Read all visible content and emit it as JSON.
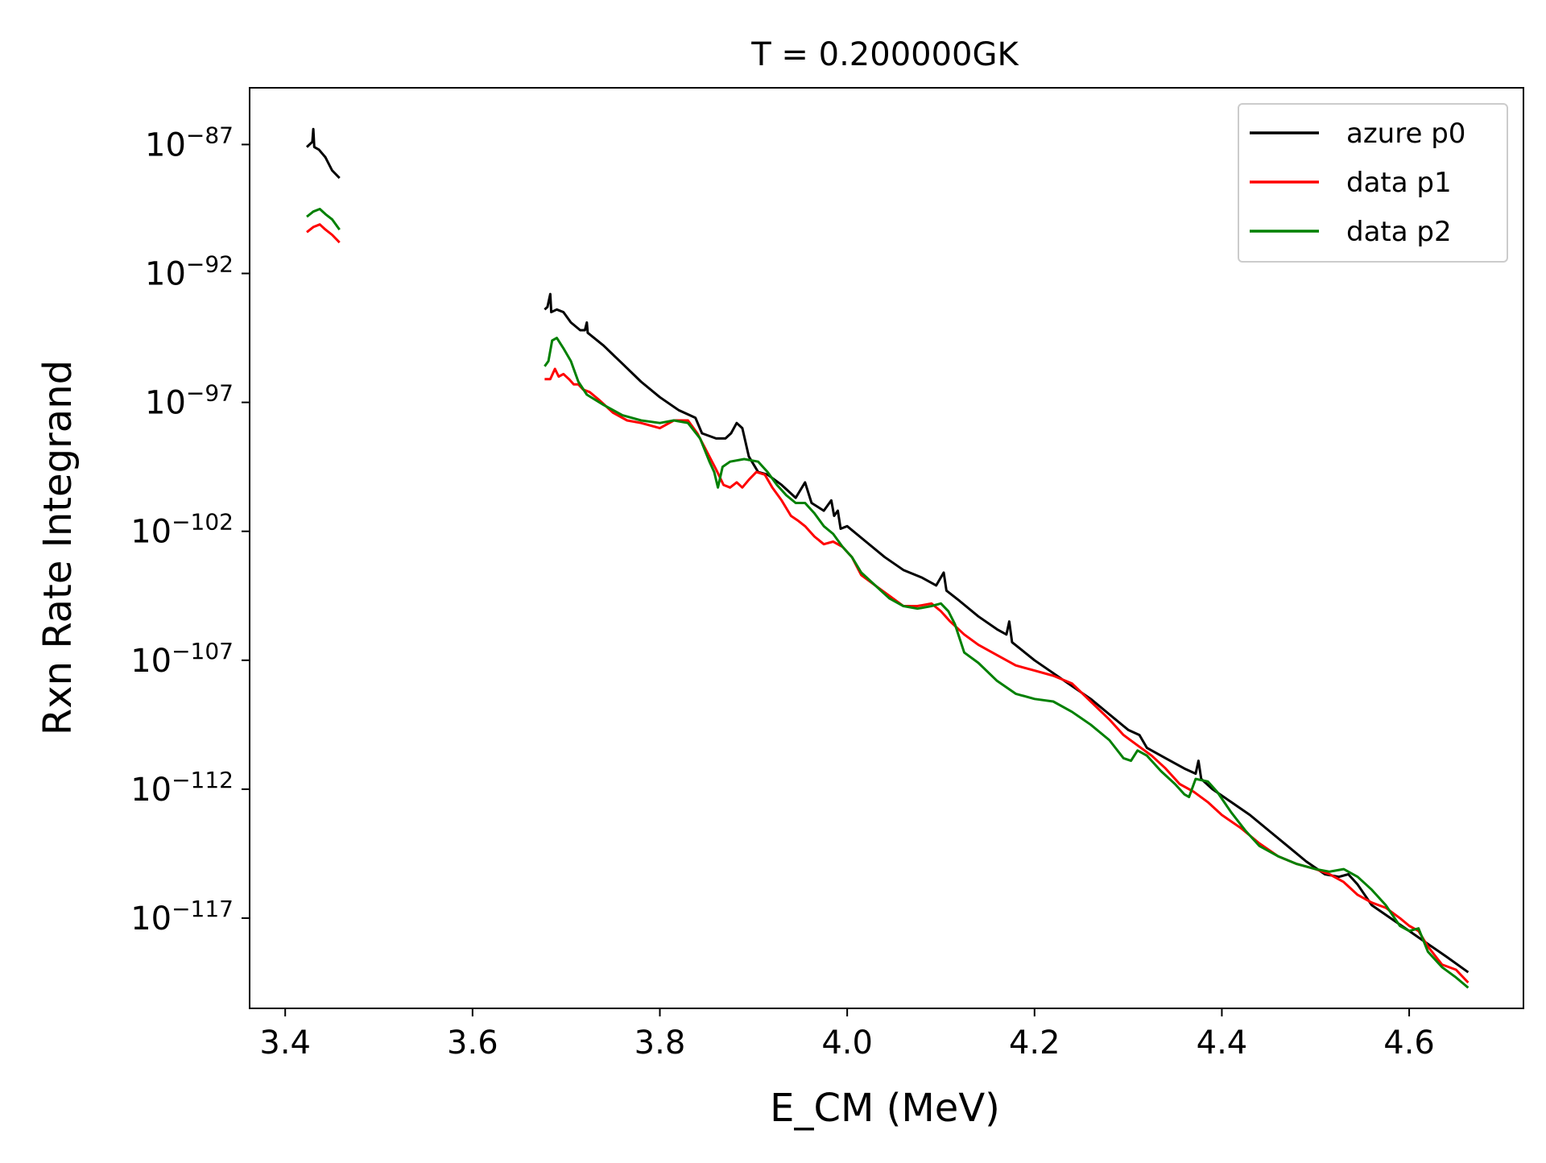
{
  "chart_data": {
    "type": "line",
    "title": "T = 0.200000GK",
    "xlabel": "E_CM (MeV)",
    "ylabel": "Rxn Rate Integrand",
    "y_scale": "log",
    "xlim": [
      3.362,
      4.722
    ],
    "ylim_exponent": [
      -120.5,
      -84.8
    ],
    "x_ticks": [
      3.4,
      3.6,
      3.8,
      4.0,
      4.2,
      4.4,
      4.6
    ],
    "x_tick_labels": [
      "3.4",
      "3.6",
      "3.8",
      "4.0",
      "4.2",
      "4.4",
      "4.6"
    ],
    "y_ticks_exponent": [
      -87,
      -92,
      -97,
      -102,
      -107,
      -112,
      -117
    ],
    "y_tick_base": "10",
    "y_tick_exponent_labels": [
      "−87",
      "−92",
      "−97",
      "−102",
      "−107",
      "−112",
      "−117"
    ],
    "grid": false,
    "legend_position": "top-right",
    "series": [
      {
        "name": "azure p0",
        "color": "#000000",
        "segments": [
          [
            [
              3.423,
              -87.1
            ],
            [
              3.429,
              -86.9
            ],
            [
              3.43,
              -86.4
            ],
            [
              3.431,
              -87.1
            ],
            [
              3.436,
              -87.2
            ],
            [
              3.443,
              -87.5
            ],
            [
              3.45,
              -88.0
            ],
            [
              3.458,
              -88.3
            ]
          ],
          [
            [
              3.677,
              -93.4
            ],
            [
              3.68,
              -93.3
            ],
            [
              3.683,
              -92.8
            ],
            [
              3.684,
              -93.5
            ],
            [
              3.69,
              -93.4
            ],
            [
              3.697,
              -93.5
            ],
            [
              3.705,
              -93.9
            ],
            [
              3.715,
              -94.2
            ],
            [
              3.72,
              -94.2
            ],
            [
              3.722,
              -93.9
            ],
            [
              3.723,
              -94.3
            ],
            [
              3.74,
              -94.8
            ],
            [
              3.76,
              -95.5
            ],
            [
              3.78,
              -96.2
            ],
            [
              3.8,
              -96.8
            ],
            [
              3.82,
              -97.3
            ],
            [
              3.838,
              -97.6
            ],
            [
              3.845,
              -98.2
            ],
            [
              3.86,
              -98.4
            ],
            [
              3.87,
              -98.4
            ],
            [
              3.876,
              -98.2
            ],
            [
              3.882,
              -97.8
            ],
            [
              3.888,
              -98.0
            ],
            [
              3.895,
              -99.1
            ],
            [
              3.905,
              -99.7
            ],
            [
              3.915,
              -99.8
            ],
            [
              3.93,
              -100.2
            ],
            [
              3.945,
              -100.7
            ],
            [
              3.955,
              -100.1
            ],
            [
              3.962,
              -100.9
            ],
            [
              3.975,
              -101.2
            ],
            [
              3.983,
              -100.8
            ],
            [
              3.986,
              -101.4
            ],
            [
              3.99,
              -101.2
            ],
            [
              3.993,
              -101.9
            ],
            [
              4.0,
              -101.8
            ],
            [
              4.02,
              -102.4
            ],
            [
              4.04,
              -103.0
            ],
            [
              4.06,
              -103.5
            ],
            [
              4.08,
              -103.8
            ],
            [
              4.095,
              -104.1
            ],
            [
              4.103,
              -103.6
            ],
            [
              4.106,
              -104.3
            ],
            [
              4.12,
              -104.7
            ],
            [
              4.14,
              -105.3
            ],
            [
              4.16,
              -105.8
            ],
            [
              4.17,
              -106.0
            ],
            [
              4.173,
              -105.5
            ],
            [
              4.176,
              -106.3
            ],
            [
              4.2,
              -107.0
            ],
            [
              4.22,
              -107.5
            ],
            [
              4.24,
              -108.0
            ],
            [
              4.26,
              -108.5
            ],
            [
              4.28,
              -109.1
            ],
            [
              4.3,
              -109.7
            ],
            [
              4.312,
              -109.9
            ],
            [
              4.32,
              -110.4
            ],
            [
              4.34,
              -110.8
            ],
            [
              4.36,
              -111.2
            ],
            [
              4.372,
              -111.4
            ],
            [
              4.375,
              -110.9
            ],
            [
              4.378,
              -111.6
            ],
            [
              4.39,
              -112.0
            ],
            [
              4.41,
              -112.5
            ],
            [
              4.43,
              -113.0
            ],
            [
              4.45,
              -113.6
            ],
            [
              4.47,
              -114.2
            ],
            [
              4.49,
              -114.8
            ],
            [
              4.51,
              -115.3
            ],
            [
              4.525,
              -115.4
            ],
            [
              4.535,
              -115.3
            ],
            [
              4.545,
              -115.7
            ],
            [
              4.56,
              -116.5
            ],
            [
              4.58,
              -117.0
            ],
            [
              4.6,
              -117.5
            ],
            [
              4.62,
              -118.0
            ],
            [
              4.64,
              -118.5
            ],
            [
              4.663,
              -119.1
            ]
          ]
        ]
      },
      {
        "name": "data p1",
        "color": "#ff0000",
        "segments": [
          [
            [
              3.423,
              -90.4
            ],
            [
              3.43,
              -90.2
            ],
            [
              3.437,
              -90.1
            ],
            [
              3.443,
              -90.3
            ],
            [
              3.45,
              -90.5
            ],
            [
              3.458,
              -90.8
            ]
          ],
          [
            [
              3.677,
              -96.1
            ],
            [
              3.683,
              -96.1
            ],
            [
              3.688,
              -95.7
            ],
            [
              3.692,
              -96.0
            ],
            [
              3.697,
              -95.9
            ],
            [
              3.703,
              -96.1
            ],
            [
              3.708,
              -96.3
            ],
            [
              3.713,
              -96.3
            ],
            [
              3.718,
              -96.5
            ],
            [
              3.725,
              -96.6
            ],
            [
              3.735,
              -96.9
            ],
            [
              3.75,
              -97.4
            ],
            [
              3.765,
              -97.7
            ],
            [
              3.78,
              -97.8
            ],
            [
              3.8,
              -98.0
            ],
            [
              3.815,
              -97.7
            ],
            [
              3.83,
              -97.7
            ],
            [
              3.84,
              -98.2
            ],
            [
              3.85,
              -98.9
            ],
            [
              3.86,
              -99.6
            ],
            [
              3.868,
              -100.2
            ],
            [
              3.875,
              -100.3
            ],
            [
              3.882,
              -100.1
            ],
            [
              3.888,
              -100.3
            ],
            [
              3.895,
              -100.0
            ],
            [
              3.903,
              -99.7
            ],
            [
              3.912,
              -99.8
            ],
            [
              3.92,
              -100.3
            ],
            [
              3.93,
              -100.8
            ],
            [
              3.94,
              -101.4
            ],
            [
              3.948,
              -101.6
            ],
            [
              3.955,
              -101.8
            ],
            [
              3.965,
              -102.2
            ],
            [
              3.975,
              -102.5
            ],
            [
              3.985,
              -102.4
            ],
            [
              3.995,
              -102.6
            ],
            [
              4.005,
              -103.0
            ],
            [
              4.015,
              -103.7
            ],
            [
              4.03,
              -104.1
            ],
            [
              4.045,
              -104.5
            ],
            [
              4.06,
              -104.9
            ],
            [
              4.075,
              -104.9
            ],
            [
              4.09,
              -104.8
            ],
            [
              4.1,
              -105.1
            ],
            [
              4.11,
              -105.5
            ],
            [
              4.125,
              -106.0
            ],
            [
              4.14,
              -106.4
            ],
            [
              4.16,
              -106.8
            ],
            [
              4.18,
              -107.2
            ],
            [
              4.2,
              -107.4
            ],
            [
              4.22,
              -107.6
            ],
            [
              4.24,
              -107.9
            ],
            [
              4.26,
              -108.6
            ],
            [
              4.28,
              -109.3
            ],
            [
              4.295,
              -109.9
            ],
            [
              4.31,
              -110.3
            ],
            [
              4.325,
              -110.7
            ],
            [
              4.34,
              -111.2
            ],
            [
              4.355,
              -111.8
            ],
            [
              4.37,
              -112.1
            ],
            [
              4.385,
              -112.5
            ],
            [
              4.4,
              -113.0
            ],
            [
              4.42,
              -113.5
            ],
            [
              4.44,
              -114.1
            ],
            [
              4.46,
              -114.6
            ],
            [
              4.48,
              -114.9
            ],
            [
              4.5,
              -115.1
            ],
            [
              4.515,
              -115.3
            ],
            [
              4.53,
              -115.6
            ],
            [
              4.545,
              -116.1
            ],
            [
              4.56,
              -116.4
            ],
            [
              4.575,
              -116.6
            ],
            [
              4.59,
              -117.0
            ],
            [
              4.6,
              -117.3
            ],
            [
              4.61,
              -117.5
            ],
            [
              4.62,
              -118.1
            ],
            [
              4.635,
              -118.8
            ],
            [
              4.65,
              -119.0
            ],
            [
              4.663,
              -119.5
            ]
          ]
        ]
      },
      {
        "name": "data p2",
        "color": "#008000",
        "segments": [
          [
            [
              3.423,
              -89.8
            ],
            [
              3.43,
              -89.6
            ],
            [
              3.437,
              -89.5
            ],
            [
              3.443,
              -89.7
            ],
            [
              3.45,
              -89.9
            ],
            [
              3.458,
              -90.3
            ]
          ],
          [
            [
              3.677,
              -95.6
            ],
            [
              3.681,
              -95.4
            ],
            [
              3.685,
              -94.6
            ],
            [
              3.69,
              -94.5
            ],
            [
              3.697,
              -94.9
            ],
            [
              3.705,
              -95.4
            ],
            [
              3.713,
              -96.2
            ],
            [
              3.722,
              -96.7
            ],
            [
              3.74,
              -97.1
            ],
            [
              3.76,
              -97.5
            ],
            [
              3.78,
              -97.7
            ],
            [
              3.8,
              -97.8
            ],
            [
              3.815,
              -97.7
            ],
            [
              3.83,
              -97.8
            ],
            [
              3.843,
              -98.4
            ],
            [
              3.853,
              -99.3
            ],
            [
              3.858,
              -99.7
            ],
            [
              3.862,
              -100.3
            ],
            [
              3.867,
              -99.5
            ],
            [
              3.875,
              -99.3
            ],
            [
              3.89,
              -99.2
            ],
            [
              3.905,
              -99.3
            ],
            [
              3.915,
              -99.7
            ],
            [
              3.925,
              -100.2
            ],
            [
              3.935,
              -100.6
            ],
            [
              3.945,
              -100.9
            ],
            [
              3.955,
              -100.9
            ],
            [
              3.965,
              -101.3
            ],
            [
              3.975,
              -101.8
            ],
            [
              3.985,
              -102.1
            ],
            [
              3.995,
              -102.6
            ],
            [
              4.005,
              -103.0
            ],
            [
              4.015,
              -103.6
            ],
            [
              4.03,
              -104.1
            ],
            [
              4.045,
              -104.6
            ],
            [
              4.06,
              -104.9
            ],
            [
              4.075,
              -105.0
            ],
            [
              4.09,
              -104.9
            ],
            [
              4.1,
              -104.8
            ],
            [
              4.108,
              -105.1
            ],
            [
              4.115,
              -105.6
            ],
            [
              4.125,
              -106.7
            ],
            [
              4.14,
              -107.1
            ],
            [
              4.16,
              -107.8
            ],
            [
              4.18,
              -108.3
            ],
            [
              4.2,
              -108.5
            ],
            [
              4.22,
              -108.6
            ],
            [
              4.24,
              -109.0
            ],
            [
              4.26,
              -109.5
            ],
            [
              4.28,
              -110.1
            ],
            [
              4.295,
              -110.8
            ],
            [
              4.303,
              -110.9
            ],
            [
              4.31,
              -110.5
            ],
            [
              4.32,
              -110.7
            ],
            [
              4.335,
              -111.3
            ],
            [
              4.35,
              -111.8
            ],
            [
              4.36,
              -112.2
            ],
            [
              4.365,
              -112.3
            ],
            [
              4.372,
              -111.6
            ],
            [
              4.385,
              -111.7
            ],
            [
              4.395,
              -112.1
            ],
            [
              4.41,
              -112.9
            ],
            [
              4.425,
              -113.6
            ],
            [
              4.44,
              -114.2
            ],
            [
              4.46,
              -114.6
            ],
            [
              4.48,
              -114.9
            ],
            [
              4.5,
              -115.1
            ],
            [
              4.515,
              -115.2
            ],
            [
              4.53,
              -115.1
            ],
            [
              4.545,
              -115.4
            ],
            [
              4.56,
              -115.9
            ],
            [
              4.575,
              -116.5
            ],
            [
              4.59,
              -117.3
            ],
            [
              4.6,
              -117.5
            ],
            [
              4.61,
              -117.4
            ],
            [
              4.62,
              -118.3
            ],
            [
              4.635,
              -118.9
            ],
            [
              4.65,
              -119.3
            ],
            [
              4.663,
              -119.7
            ]
          ]
        ]
      }
    ]
  }
}
